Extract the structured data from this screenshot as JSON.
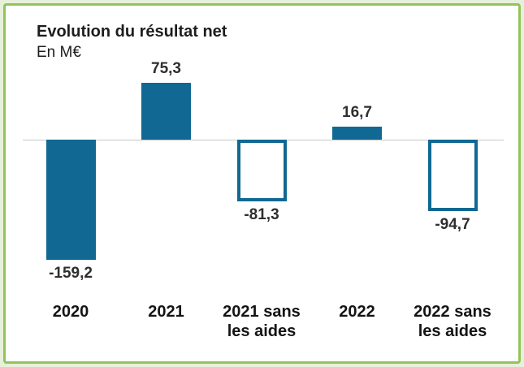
{
  "colors": {
    "bar": "#116892",
    "frame_border": "#92c35c",
    "page_background": "#e7f0da",
    "axis_line": "#c8c8c8",
    "text": "#1d1d1d"
  },
  "chart_data": {
    "type": "bar",
    "title": "Evolution du résultat net",
    "subtitle": "En M€",
    "categories": [
      "2020",
      "2021",
      "2021 sans les aides",
      "2022",
      "2022 sans les aides"
    ],
    "values": [
      -159.2,
      75.3,
      -81.3,
      16.7,
      -94.7
    ],
    "value_labels": [
      "-159,2",
      "75,3",
      "-81,3",
      "16,7",
      "-94,7"
    ],
    "bar_styles": [
      "solid",
      "solid",
      "outline",
      "solid",
      "outline"
    ],
    "xlabel": "",
    "ylabel": "En M€",
    "ylim": [
      -180,
      95
    ],
    "grid": false,
    "legend": "none"
  }
}
